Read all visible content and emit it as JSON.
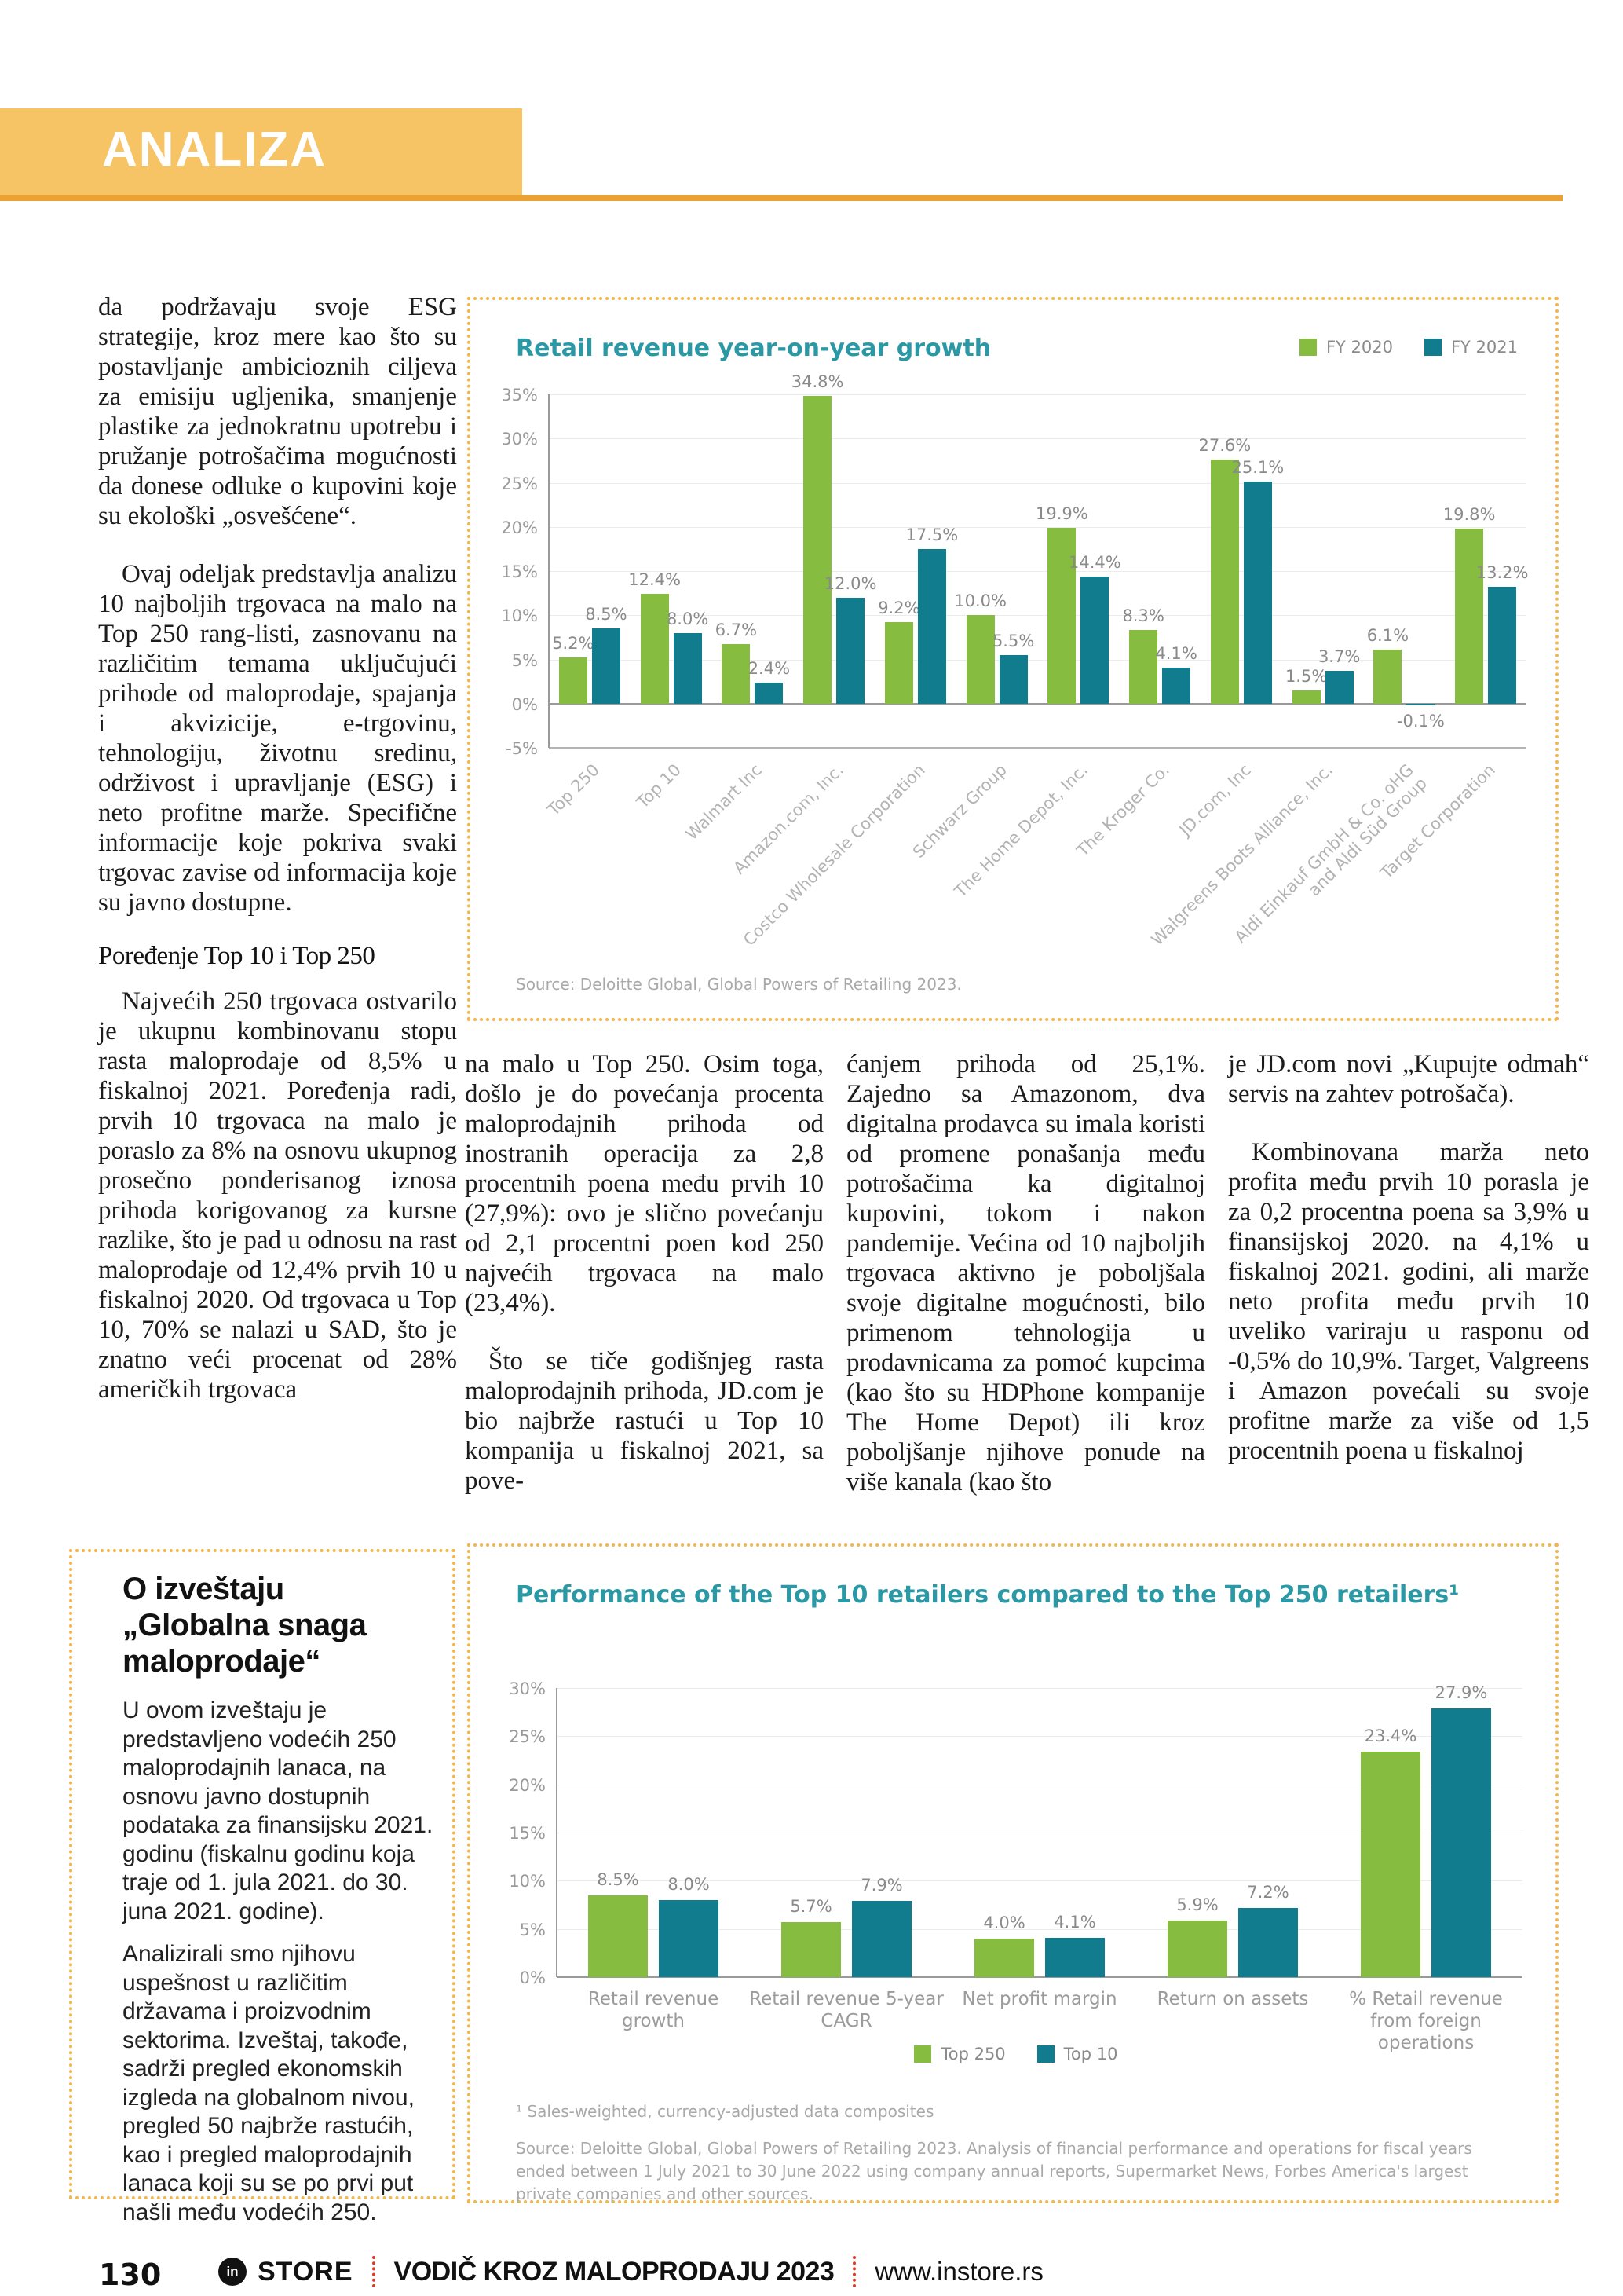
{
  "banner": {
    "title": "ANALIZA"
  },
  "article": {
    "col1_p1": "da podržavaju svoje ESG strategije, kroz mere kao što su postavljanje ambicioznih ciljeva za emisiju ugljenika, smanjenje plastike za jednokratnu upotrebu i pružanje potrošačima mogućnosti da donese odluke o kupovini koje su ekološki „osvešćene“.",
    "col1_p2": "Ovaj odeljak predstavlja analizu 10 najboljih trgovaca na malo na Top 250 rang-listi, zasnovanu na različitim temama uključujući prihode od maloprodaje, spajanja i akvizicije, e-trgovinu, tehnologiju, životnu sredinu, održivost i upravljanje (ESG) i neto profitne marže. Specifične informacije koje pokriva svaki trgovac zavise od informacija koje su javno dostupne.",
    "heading": "Poređenje Top 10 i Top 250",
    "col1_p3": "Najvećih 250 trgovaca ostvarilo je ukupnu kombinovanu stopu rasta maloprodaje od 8,5% u fiskalnoj 2021. Poređenja radi, prvih 10 trgovaca na malo je poraslo za 8% na osnovu ukupnog prosečno ponderisanog iznosa prihoda korigovanog za kursne razlike, što je pad u odnosu na rast maloprodaje od 12,4% prvih 10 u fiskalnoj 2020. Od trgovaca u Top 10, 70% se nalazi u SAD, što je znatno veći procenat od 28% američkih trgovaca",
    "col2_p1": "na malo u Top 250. Osim toga, došlo je do povećanja procenta maloprodajnih prihoda od inostranih operacija za 2,8 procentnih poena među prvih 10 (27,9%): ovo je slično povećanju od 2,1 procentni poen kod 250 najvećih trgovaca na malo (23,4%).",
    "col2_p2": "Što se tiče godišnjeg rasta maloprodajnih prihoda, JD.com je bio najbrže rastući u Top 10 kompanija u fiskalnoj 2021, sa pove-",
    "col3_p1": "ćanjem prihoda od 25,1%. Zajedno sa Amazonom, dva digitalna prodavca su imala koristi od promene ponašanja među potrošačima ka digitalnoj kupovini, tokom i nakon pandemije. Većina od 10 najboljih trgovaca aktivno je poboljšala svoje digitalne mogućnosti, bilo primenom tehnologija u prodavnicama za pomoć kupcima (kao što su HDPhone kompanije The Home Depot) ili kroz poboljšanje njihove ponude na više kanala (kao što",
    "col4_p1": "je JD.com novi „Kupujte odmah“ servis na zahtev potrošača).",
    "col4_p2": "Kombinovana marža neto profita među prvih 10 porasla je za 0,2 procentna poena sa 3,9% u finansijskoj 2020. na 4,1% u fiskalnoj 2021. godini, ali marže neto profita među prvih 10 uveliko variraju u rasponu od -0,5% do 10,9%. Target, Valgreens i Amazon povećali su svoje profitne marže za više od 1,5 procentnih poena u fiskalnoj"
  },
  "report_box": {
    "title": "O izveštaju „Globalna snaga maloprodaje“",
    "p1": "U ovom izveštaju je predstavljeno vodećih 250 maloprodajnih lanaca, na osnovu javno dostupnih podataka za finansijsku 2021. godinu (fiskalnu godinu koja traje od 1. jula 2021. do 30. juna 2021. godine).",
    "p2": "Analizirali smo njihovu uspešnost u različitim državama i proizvodnim sektorima. Izveštaj, takođe, sadrži pregled ekonomskih izgleda na globalnom nivou, pregled 50 najbrže rastućih, kao i pregled maloprodajnih lanaca koji su se po prvi put našli među vodećih 250."
  },
  "chart_data": [
    {
      "type": "bar",
      "title": "Retail revenue year-on-year growth",
      "categories": [
        "Top 250",
        "Top 10",
        "Walmart Inc",
        "Amazon.com, Inc.",
        "Costco Wholesale Corporation",
        "Schwarz Group",
        "The Home Depot, Inc.",
        "The Kroger Co.",
        "JD.com, Inc",
        "Walgreens Boots Alliance, Inc.",
        "Aldi Einkauf GmbH & Co. oHG and Aldi Süd Group",
        "Target Corporation"
      ],
      "series": [
        {
          "name": "FY 2020",
          "color": "#86BD40",
          "values": [
            5.2,
            12.4,
            6.7,
            34.8,
            9.2,
            10.0,
            19.9,
            8.3,
            27.6,
            1.5,
            6.1,
            19.8
          ]
        },
        {
          "name": "FY 2021",
          "color": "#107C8E",
          "values": [
            8.5,
            8.0,
            2.4,
            12.0,
            17.5,
            5.5,
            14.4,
            4.1,
            25.1,
            3.7,
            -0.1,
            13.2
          ]
        }
      ],
      "xlabel": "",
      "ylabel": "",
      "ylim": [
        -5,
        35
      ],
      "ytick_step": 5,
      "grid": true,
      "legend_position": "top-right",
      "source": "Source: Deloitte Global, Global Powers of Retailing 2023."
    },
    {
      "type": "bar",
      "title": "Performance of the Top 10 retailers compared to the Top 250 retailers¹",
      "categories": [
        "Retail revenue growth",
        "Retail revenue 5-year CAGR",
        "Net profit margin",
        "Return on assets",
        "% Retail revenue from foreign operations"
      ],
      "series": [
        {
          "name": "Top 250",
          "color": "#86BD40",
          "values": [
            8.5,
            5.7,
            4.0,
            5.9,
            23.4
          ]
        },
        {
          "name": "Top 10",
          "color": "#107C8E",
          "values": [
            8.0,
            7.9,
            4.1,
            7.2,
            27.9
          ]
        }
      ],
      "xlabel": "",
      "ylabel": "",
      "ylim": [
        0,
        30
      ],
      "ytick_step": 5,
      "grid": true,
      "legend_position": "bottom",
      "footnote": "¹ Sales-weighted, currency-adjusted data composites",
      "source": "Source: Deloitte Global, Global Powers of Retailing 2023. Analysis of financial performance and operations for fiscal years ended between 1 July 2021 to 30 June 2022 using company annual reports, Supermarket News, Forbes America's largest private companies and other sources."
    }
  ],
  "footer": {
    "page_number": "130",
    "logo_in": "in",
    "logo_store": "STORE",
    "title": "VODIČ KROZ MALOPRODAJU 2023",
    "website": "www.instore.rs"
  }
}
